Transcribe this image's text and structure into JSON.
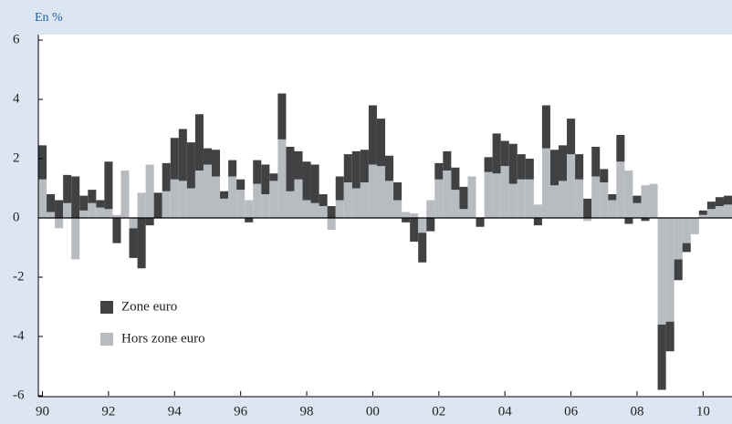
{
  "chart_data": {
    "type": "stacked_bar",
    "y_label": "En %",
    "categories": [
      "90",
      null,
      null,
      null,
      null,
      null,
      null,
      null,
      "92",
      null,
      null,
      null,
      null,
      null,
      null,
      null,
      "94",
      null,
      null,
      null,
      null,
      null,
      null,
      null,
      "96",
      null,
      null,
      null,
      null,
      null,
      null,
      null,
      "98",
      null,
      null,
      null,
      null,
      null,
      null,
      null,
      "00",
      null,
      null,
      null,
      null,
      null,
      null,
      null,
      "02",
      null,
      null,
      null,
      null,
      null,
      null,
      null,
      "04",
      null,
      null,
      null,
      null,
      null,
      null,
      null,
      "06",
      null,
      null,
      null,
      null,
      null,
      null,
      null,
      "08",
      null,
      null,
      null,
      null,
      null,
      null,
      null,
      "10",
      null,
      null,
      null
    ],
    "series": [
      {
        "name": "Zone euro",
        "color": "#3f4143",
        "values": [
          1.15,
          0.6,
          0.6,
          0.95,
          1.4,
          0.5,
          0.45,
          0.25,
          1.6,
          -0.85,
          0,
          -1.0,
          -1.7,
          -0.25,
          0.85,
          0.95,
          1.4,
          1.75,
          1.55,
          1.9,
          0.55,
          0.9,
          0.25,
          0.55,
          0.35,
          -0.15,
          0.8,
          1.0,
          0.25,
          1.55,
          1.5,
          0.95,
          1.3,
          1.3,
          0.4,
          0.4,
          0.8,
          0.95,
          1.25,
          1.1,
          2.0,
          1.6,
          0.85,
          0.6,
          -0.15,
          -0.8,
          -1.0,
          -0.45,
          0.55,
          0.65,
          0.75,
          0.75,
          0,
          -0.3,
          0.5,
          1.35,
          0.85,
          1.35,
          0.85,
          0.7,
          -0.25,
          1.45,
          1.2,
          1.2,
          1.2,
          0.85,
          0.65,
          1.0,
          0.45,
          0.2,
          0.9,
          -0.2,
          0.25,
          -0.1,
          0,
          -2.2,
          -1.0,
          -0.7,
          -0.3,
          0,
          0.15,
          0.25,
          0.3,
          0.3
        ]
      },
      {
        "name": "Hors zone euro",
        "color": "#b8bcc0",
        "values": [
          1.3,
          0.2,
          -0.35,
          0.5,
          -1.4,
          0.25,
          0.5,
          0.35,
          0.3,
          0.1,
          1.6,
          -0.35,
          0.85,
          1.8,
          0,
          0.9,
          1.3,
          1.25,
          1.0,
          1.6,
          1.8,
          1.4,
          0.65,
          1.4,
          0.95,
          0.6,
          1.15,
          0.8,
          1.25,
          2.65,
          0.9,
          1.3,
          0.6,
          0.5,
          0.4,
          -0.4,
          0.6,
          1.2,
          1.0,
          1.2,
          1.8,
          1.75,
          1.25,
          0.6,
          0.2,
          0.15,
          -0.5,
          0.6,
          1.3,
          1.6,
          0.95,
          0.3,
          1.4,
          0,
          1.55,
          1.5,
          1.75,
          1.15,
          1.3,
          1.3,
          0.45,
          2.35,
          1.1,
          1.25,
          2.15,
          1.3,
          -0.1,
          1.4,
          1.2,
          0.6,
          1.9,
          1.6,
          0.5,
          1.1,
          1.15,
          -3.6,
          -3.5,
          -1.4,
          -0.85,
          -0.55,
          0.1,
          0.3,
          0.4,
          0.45
        ]
      }
    ],
    "ylim": [
      -6,
      6
    ],
    "yticks": [
      -6,
      -4,
      -2,
      0,
      2,
      4,
      6
    ]
  }
}
